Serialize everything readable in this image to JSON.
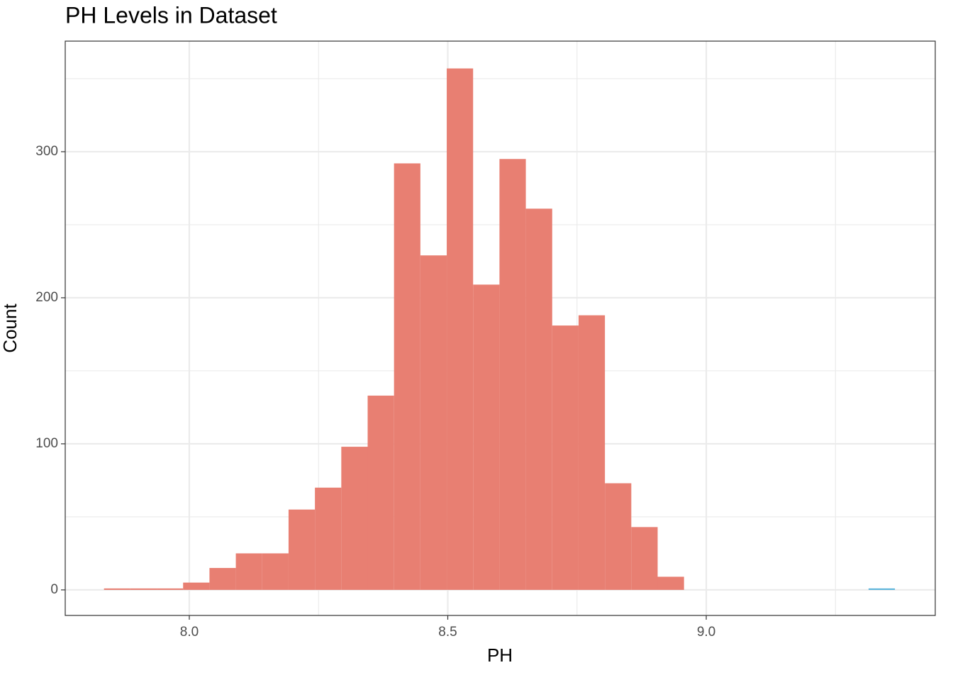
{
  "chart_data": {
    "type": "histogram",
    "title": "PH Levels in Dataset",
    "x_label": "PH",
    "y_label": "Count",
    "bins": [
      7.835,
      7.886,
      7.937,
      7.988,
      8.039,
      8.09,
      8.141,
      8.192,
      8.243,
      8.294,
      8.345,
      8.396,
      8.447,
      8.498,
      8.549,
      8.6,
      8.651,
      8.702,
      8.753,
      8.804,
      8.855,
      8.906,
      8.957,
      9.008,
      9.059,
      9.11,
      9.161,
      9.212,
      9.263,
      9.314,
      9.365
    ],
    "values": [
      1,
      1,
      1,
      5,
      15,
      25,
      25,
      55,
      70,
      98,
      133,
      292,
      229,
      357,
      209,
      295,
      261,
      181,
      188,
      73,
      43,
      9,
      0,
      0,
      0,
      0,
      0,
      0,
      0,
      1
    ],
    "colors": [
      "#e87f72",
      "#e87f72",
      "#e87f72",
      "#e87f72",
      "#e87f72",
      "#e87f72",
      "#e87f72",
      "#e87f72",
      "#e87f72",
      "#e87f72",
      "#e87f72",
      "#e87f72",
      "#e87f72",
      "#e87f72",
      "#e87f72",
      "#e87f72",
      "#e87f72",
      "#e87f72",
      "#e87f72",
      "#e87f72",
      "#e87f72",
      "#e87f72",
      "#e87f72",
      "#e87f72",
      "#e87f72",
      "#e87f72",
      "#e87f72",
      "#e87f72",
      "#e87f72",
      "#5ab4dc"
    ],
    "xlim": [
      7.76,
      9.443
    ],
    "ylim": [
      -17.5,
      375.7
    ],
    "xticks": [
      {
        "value": 8,
        "label": "8.0"
      },
      8.5,
      {
        "value": 9,
        "label": "9.0"
      }
    ],
    "x_minor_ticks": [
      8.25,
      8.75,
      9.25
    ],
    "yticks": [
      0,
      100,
      200,
      300
    ],
    "y_minor_ticks": [
      50,
      150,
      250,
      350
    ],
    "grid": true
  }
}
